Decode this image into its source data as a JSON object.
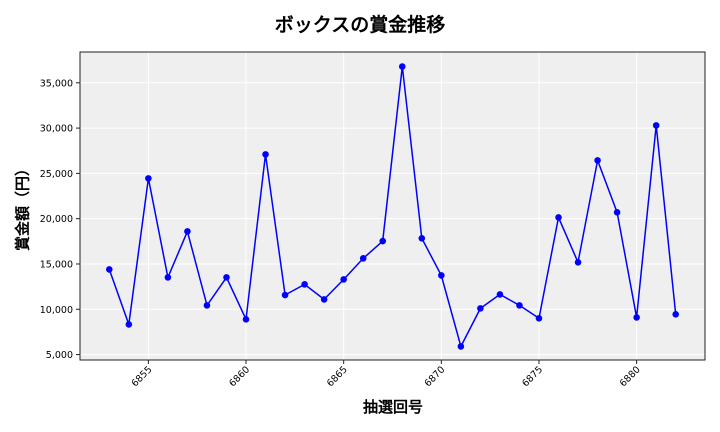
{
  "chart_data": {
    "type": "line",
    "title": "ボックスの賞金推移",
    "xlabel": "抽選回号",
    "ylabel": "賞金額（円）",
    "x": [
      6853,
      6854,
      6855,
      6856,
      6857,
      6858,
      6859,
      6860,
      6861,
      6862,
      6863,
      6864,
      6865,
      6866,
      6867,
      6868,
      6869,
      6870,
      6871,
      6872,
      6873,
      6874,
      6875,
      6876,
      6877,
      6878,
      6879,
      6880,
      6881,
      6882
    ],
    "series": [
      {
        "name": "ボックス",
        "values": [
          14400,
          8330,
          24450,
          13520,
          18600,
          10430,
          13520,
          8890,
          27100,
          11570,
          12750,
          11090,
          13300,
          15620,
          17530,
          36800,
          17830,
          13740,
          5900,
          10100,
          11640,
          10430,
          9000,
          20140,
          15180,
          26430,
          20700,
          9100,
          30300,
          9440
        ],
        "color": "#0000ff"
      }
    ],
    "xticks": [
      6855,
      6860,
      6865,
      6870,
      6875,
      6880
    ],
    "yticks": [
      5000,
      10000,
      15000,
      20000,
      25000,
      30000,
      35000
    ],
    "ytick_labels": [
      "5,000",
      "10,000",
      "15,000",
      "20,000",
      "25,000",
      "30,000",
      "35,000"
    ],
    "xlim": [
      6851.5,
      6883.5
    ],
    "ylim": [
      4400,
      38400
    ],
    "grid": true,
    "legend": null,
    "background": "#efefef",
    "marker": "circle"
  }
}
